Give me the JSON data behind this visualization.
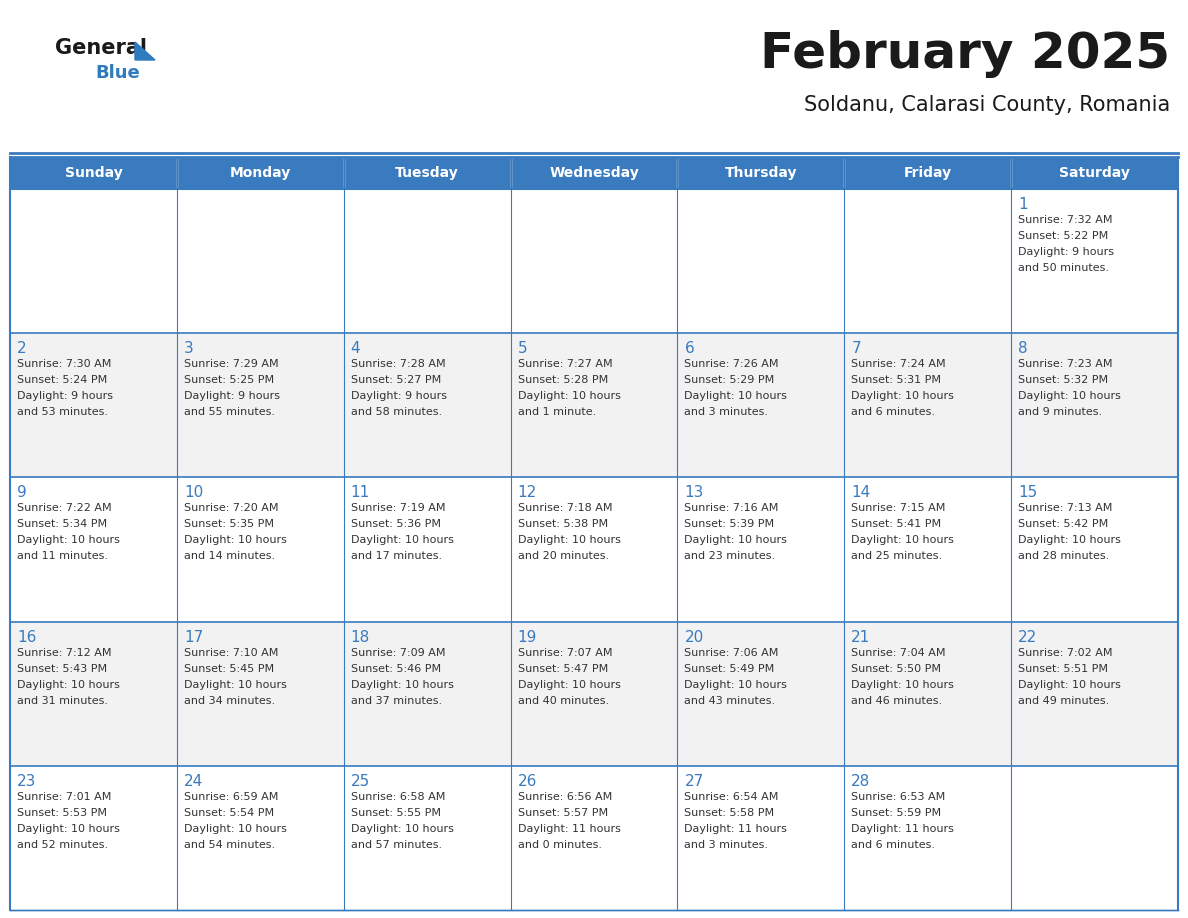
{
  "title": "February 2025",
  "subtitle": "Soldanu, Calarasi County, Romania",
  "header_bg": "#3a7abf",
  "header_text": "#ffffff",
  "cell_bg_alt": "#f2f2f2",
  "cell_bg_white": "#ffffff",
  "border_color": "#3a7abf",
  "border_light": "#c0c0c0",
  "day_headers": [
    "Sunday",
    "Monday",
    "Tuesday",
    "Wednesday",
    "Thursday",
    "Friday",
    "Saturday"
  ],
  "title_color": "#1a1a1a",
  "subtitle_color": "#1a1a1a",
  "day_number_color": "#3a7abf",
  "cell_text_color": "#333333",
  "logo_general_color": "#1a1a1a",
  "logo_blue_color": "#2e7bbf",
  "weeks": [
    [
      {
        "day": null,
        "info": ""
      },
      {
        "day": null,
        "info": ""
      },
      {
        "day": null,
        "info": ""
      },
      {
        "day": null,
        "info": ""
      },
      {
        "day": null,
        "info": ""
      },
      {
        "day": null,
        "info": ""
      },
      {
        "day": 1,
        "info": "Sunrise: 7:32 AM\nSunset: 5:22 PM\nDaylight: 9 hours\nand 50 minutes."
      }
    ],
    [
      {
        "day": 2,
        "info": "Sunrise: 7:30 AM\nSunset: 5:24 PM\nDaylight: 9 hours\nand 53 minutes."
      },
      {
        "day": 3,
        "info": "Sunrise: 7:29 AM\nSunset: 5:25 PM\nDaylight: 9 hours\nand 55 minutes."
      },
      {
        "day": 4,
        "info": "Sunrise: 7:28 AM\nSunset: 5:27 PM\nDaylight: 9 hours\nand 58 minutes."
      },
      {
        "day": 5,
        "info": "Sunrise: 7:27 AM\nSunset: 5:28 PM\nDaylight: 10 hours\nand 1 minute."
      },
      {
        "day": 6,
        "info": "Sunrise: 7:26 AM\nSunset: 5:29 PM\nDaylight: 10 hours\nand 3 minutes."
      },
      {
        "day": 7,
        "info": "Sunrise: 7:24 AM\nSunset: 5:31 PM\nDaylight: 10 hours\nand 6 minutes."
      },
      {
        "day": 8,
        "info": "Sunrise: 7:23 AM\nSunset: 5:32 PM\nDaylight: 10 hours\nand 9 minutes."
      }
    ],
    [
      {
        "day": 9,
        "info": "Sunrise: 7:22 AM\nSunset: 5:34 PM\nDaylight: 10 hours\nand 11 minutes."
      },
      {
        "day": 10,
        "info": "Sunrise: 7:20 AM\nSunset: 5:35 PM\nDaylight: 10 hours\nand 14 minutes."
      },
      {
        "day": 11,
        "info": "Sunrise: 7:19 AM\nSunset: 5:36 PM\nDaylight: 10 hours\nand 17 minutes."
      },
      {
        "day": 12,
        "info": "Sunrise: 7:18 AM\nSunset: 5:38 PM\nDaylight: 10 hours\nand 20 minutes."
      },
      {
        "day": 13,
        "info": "Sunrise: 7:16 AM\nSunset: 5:39 PM\nDaylight: 10 hours\nand 23 minutes."
      },
      {
        "day": 14,
        "info": "Sunrise: 7:15 AM\nSunset: 5:41 PM\nDaylight: 10 hours\nand 25 minutes."
      },
      {
        "day": 15,
        "info": "Sunrise: 7:13 AM\nSunset: 5:42 PM\nDaylight: 10 hours\nand 28 minutes."
      }
    ],
    [
      {
        "day": 16,
        "info": "Sunrise: 7:12 AM\nSunset: 5:43 PM\nDaylight: 10 hours\nand 31 minutes."
      },
      {
        "day": 17,
        "info": "Sunrise: 7:10 AM\nSunset: 5:45 PM\nDaylight: 10 hours\nand 34 minutes."
      },
      {
        "day": 18,
        "info": "Sunrise: 7:09 AM\nSunset: 5:46 PM\nDaylight: 10 hours\nand 37 minutes."
      },
      {
        "day": 19,
        "info": "Sunrise: 7:07 AM\nSunset: 5:47 PM\nDaylight: 10 hours\nand 40 minutes."
      },
      {
        "day": 20,
        "info": "Sunrise: 7:06 AM\nSunset: 5:49 PM\nDaylight: 10 hours\nand 43 minutes."
      },
      {
        "day": 21,
        "info": "Sunrise: 7:04 AM\nSunset: 5:50 PM\nDaylight: 10 hours\nand 46 minutes."
      },
      {
        "day": 22,
        "info": "Sunrise: 7:02 AM\nSunset: 5:51 PM\nDaylight: 10 hours\nand 49 minutes."
      }
    ],
    [
      {
        "day": 23,
        "info": "Sunrise: 7:01 AM\nSunset: 5:53 PM\nDaylight: 10 hours\nand 52 minutes."
      },
      {
        "day": 24,
        "info": "Sunrise: 6:59 AM\nSunset: 5:54 PM\nDaylight: 10 hours\nand 54 minutes."
      },
      {
        "day": 25,
        "info": "Sunrise: 6:58 AM\nSunset: 5:55 PM\nDaylight: 10 hours\nand 57 minutes."
      },
      {
        "day": 26,
        "info": "Sunrise: 6:56 AM\nSunset: 5:57 PM\nDaylight: 11 hours\nand 0 minutes."
      },
      {
        "day": 27,
        "info": "Sunrise: 6:54 AM\nSunset: 5:58 PM\nDaylight: 11 hours\nand 3 minutes."
      },
      {
        "day": 28,
        "info": "Sunrise: 6:53 AM\nSunset: 5:59 PM\nDaylight: 11 hours\nand 6 minutes."
      },
      {
        "day": null,
        "info": ""
      }
    ]
  ]
}
